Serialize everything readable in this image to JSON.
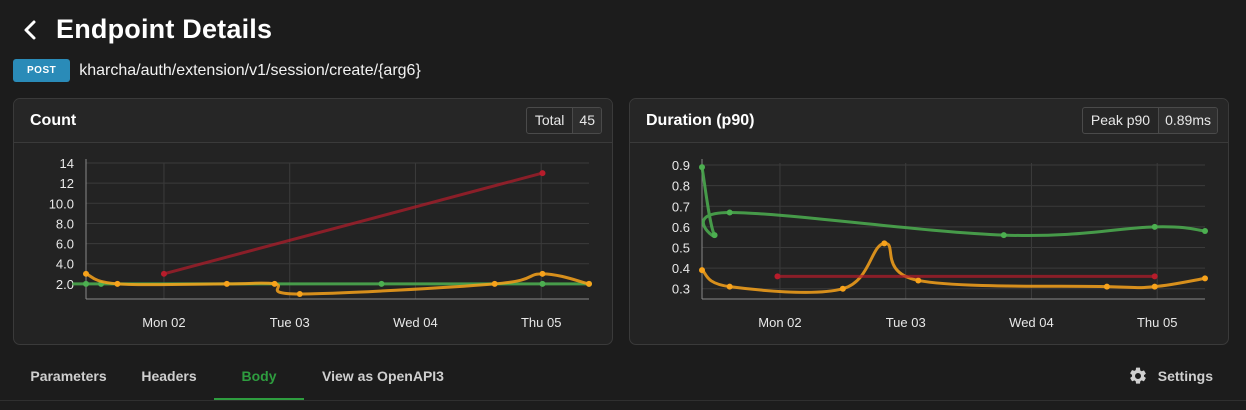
{
  "page": {
    "title": "Endpoint Details"
  },
  "endpoint": {
    "method": "POST",
    "path": "kharcha/auth/extension/v1/session/create/{arg6}"
  },
  "count_card": {
    "title": "Count",
    "stat_label": "Total",
    "stat_value": "45"
  },
  "duration_card": {
    "title": "Duration (p90)",
    "stat_label": "Peak p90",
    "stat_value": "0.89ms"
  },
  "tabs": [
    {
      "label": "Parameters",
      "active": false
    },
    {
      "label": "Headers",
      "active": false
    },
    {
      "label": "Body",
      "active": true
    },
    {
      "label": "View as OpenAPI3",
      "active": false
    }
  ],
  "settings": {
    "label": "Settings",
    "icon": "gear-icon"
  },
  "colors": {
    "green": "#4caf50",
    "orange": "#f7a21b",
    "red": "#b71c2b",
    "accent": "#2e9d3f",
    "badge": "#2a8bb8"
  },
  "chart_data": [
    {
      "type": "line",
      "title": "Count",
      "x_ticks": [
        "Mon 02",
        "Tue 03",
        "Wed 04",
        "Thu 05"
      ],
      "y_ticks": [
        "2.0",
        "4.0",
        "6.0",
        "8.0",
        "10.0",
        "12",
        "14"
      ],
      "ylim": [
        0.5,
        14
      ],
      "grid": true,
      "x_domain_days": [
        0.0,
        4.0
      ],
      "series": [
        {
          "color": "#4caf50",
          "smooth": true,
          "points": [
            [
              0.0,
              2.0
            ],
            [
              0.12,
              2.0
            ],
            [
              2.35,
              2.0
            ],
            [
              3.63,
              2.0
            ],
            [
              4.0,
              2.0
            ]
          ],
          "markers": [
            [
              0.0,
              2.0
            ],
            [
              0.12,
              2.0
            ],
            [
              2.35,
              2.0
            ],
            [
              3.63,
              2.0
            ],
            [
              4.0,
              2.0
            ]
          ]
        },
        {
          "color": "#f7a21b",
          "smooth": true,
          "points": [
            [
              0.0,
              3.0
            ],
            [
              0.25,
              2.0
            ],
            [
              1.12,
              2.0
            ],
            [
              1.5,
              2.0
            ],
            [
              1.7,
              1.0
            ],
            [
              3.25,
              2.0
            ],
            [
              3.63,
              3.0
            ],
            [
              4.0,
              2.0
            ]
          ],
          "markers": [
            [
              0.0,
              3.0
            ],
            [
              0.25,
              2.0
            ],
            [
              1.12,
              2.0
            ],
            [
              1.5,
              2.0
            ],
            [
              1.7,
              1.0
            ],
            [
              3.25,
              2.0
            ],
            [
              3.63,
              3.0
            ],
            [
              4.0,
              2.0
            ]
          ]
        },
        {
          "color": "#b71c2b",
          "smooth": false,
          "points": [
            [
              0.62,
              3.0
            ],
            [
              3.63,
              13.0
            ]
          ],
          "markers": [
            [
              0.62,
              3.0
            ],
            [
              3.63,
              13.0
            ]
          ]
        }
      ]
    },
    {
      "type": "line",
      "title": "Duration (p90)",
      "x_ticks": [
        "Mon 02",
        "Tue 03",
        "Wed 04",
        "Thu 05"
      ],
      "y_ticks": [
        "0.3",
        "0.4",
        "0.5",
        "0.6",
        "0.7",
        "0.8",
        "0.9"
      ],
      "ylim": [
        0.25,
        0.91
      ],
      "grid": true,
      "x_domain_days": [
        0.0,
        4.0
      ],
      "series": [
        {
          "color": "#4caf50",
          "smooth": true,
          "points": [
            [
              0.0,
              0.89
            ],
            [
              0.1,
              0.56
            ],
            [
              0.22,
              0.67
            ],
            [
              2.4,
              0.56
            ],
            [
              3.6,
              0.6
            ],
            [
              4.0,
              0.58
            ]
          ],
          "markers": [
            [
              0.0,
              0.89
            ],
            [
              0.1,
              0.56
            ],
            [
              0.22,
              0.67
            ],
            [
              2.4,
              0.56
            ],
            [
              3.6,
              0.6
            ],
            [
              4.0,
              0.58
            ]
          ]
        },
        {
          "color": "#f7a21b",
          "smooth": true,
          "points": [
            [
              0.0,
              0.39
            ],
            [
              0.22,
              0.31
            ],
            [
              1.12,
              0.3
            ],
            [
              1.45,
              0.52
            ],
            [
              1.72,
              0.34
            ],
            [
              3.22,
              0.31
            ],
            [
              3.6,
              0.31
            ],
            [
              4.0,
              0.35
            ]
          ],
          "markers": [
            [
              0.0,
              0.39
            ],
            [
              0.22,
              0.31
            ],
            [
              1.12,
              0.3
            ],
            [
              1.45,
              0.52
            ],
            [
              1.72,
              0.34
            ],
            [
              3.22,
              0.31
            ],
            [
              3.6,
              0.31
            ],
            [
              4.0,
              0.35
            ]
          ]
        },
        {
          "color": "#b71c2b",
          "smooth": false,
          "points": [
            [
              0.6,
              0.36
            ],
            [
              3.6,
              0.36
            ]
          ],
          "markers": [
            [
              0.6,
              0.36
            ],
            [
              3.6,
              0.36
            ]
          ]
        }
      ]
    }
  ]
}
